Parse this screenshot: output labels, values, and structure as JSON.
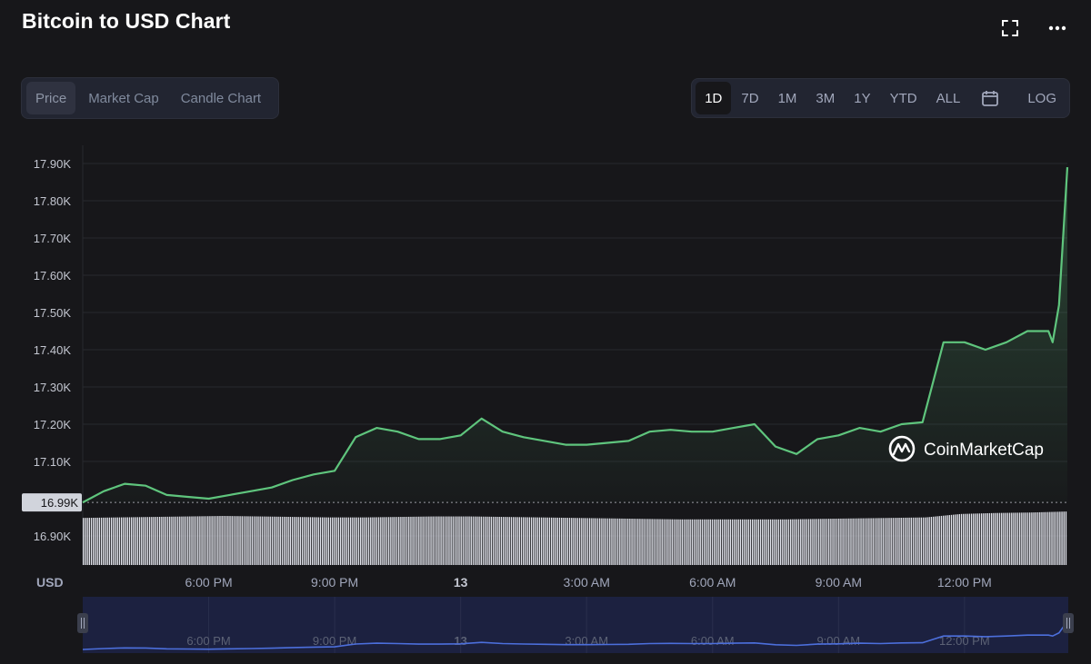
{
  "header": {
    "title": "Bitcoin to USD Chart",
    "fullscreen_icon": "fullscreen-icon",
    "more_icon": "more-dots-icon"
  },
  "chart_tabs": [
    {
      "label": "Price",
      "active": true
    },
    {
      "label": "Market Cap",
      "active": false
    },
    {
      "label": "Candle Chart",
      "active": false
    }
  ],
  "range_buttons": [
    "1D",
    "7D",
    "1M",
    "3M",
    "1Y",
    "YTD",
    "ALL"
  ],
  "active_range": "1D",
  "calendar_icon": "calendar-icon",
  "log_label": "LOG",
  "currency_label": "USD",
  "watermark": {
    "text": "CoinMarketCap",
    "icon": "coinmarketcap-logo-icon"
  },
  "colors": {
    "background": "#17171a",
    "line": "#5fc57d",
    "volume": "#e4e6ee",
    "navigator_line": "#4c6fdc",
    "navigator_bg": "#1c2140",
    "grid": "#27282e",
    "axis_text": "#a1a7bb"
  },
  "chart_data": {
    "type": "area",
    "series": [
      {
        "name": "Price",
        "color": "#5fc57d"
      }
    ],
    "ylim": [
      16860,
      17930
    ],
    "yticks": [
      16900,
      17100,
      17200,
      17300,
      17400,
      17500,
      17600,
      17700,
      17800,
      17900
    ],
    "ytick_labels": [
      "16.90K",
      "17.10K",
      "17.20K",
      "17.30K",
      "17.40K",
      "17.50K",
      "17.60K",
      "17.70K",
      "17.80K",
      "17.90K"
    ],
    "current_price_label": "16.99K",
    "current_price_value": 16990,
    "x_hours": [
      0.0,
      0.5,
      1.0,
      1.5,
      2.0,
      2.5,
      3.0,
      3.5,
      4.0,
      4.5,
      5.0,
      5.5,
      6.0,
      6.5,
      7.0,
      7.5,
      8.0,
      8.5,
      9.0,
      9.5,
      10.0,
      10.5,
      11.0,
      11.5,
      12.0,
      12.5,
      13.0,
      13.5,
      14.0,
      14.5,
      15.0,
      15.5,
      16.0,
      16.5,
      17.0,
      17.5,
      18.0,
      18.5,
      19.0,
      19.5,
      20.0,
      20.5,
      21.0,
      21.5,
      22.0,
      22.5,
      23.0,
      23.1,
      23.25,
      23.45
    ],
    "y_price": [
      16990,
      17020,
      17040,
      17035,
      17010,
      17005,
      17000,
      17010,
      17020,
      17030,
      17050,
      17065,
      17075,
      17165,
      17190,
      17180,
      17160,
      17160,
      17170,
      17215,
      17180,
      17165,
      17155,
      17145,
      17145,
      17150,
      17155,
      17180,
      17185,
      17180,
      17180,
      17190,
      17200,
      17140,
      17120,
      17160,
      17170,
      17190,
      17180,
      17200,
      17205,
      17420,
      17420,
      17400,
      17420,
      17450,
      17450,
      17420,
      17520,
      17890
    ],
    "xtick_labels": [
      "6:00 PM",
      "9:00 PM",
      "13",
      "3:00 AM",
      "6:00 AM",
      "9:00 AM",
      "12:00 PM"
    ],
    "xtick_hours": [
      3,
      6,
      9,
      12,
      15,
      18,
      21
    ],
    "volume_relative": [
      0.96,
      0.97,
      0.98,
      0.99,
      1.0,
      0.99,
      0.98,
      0.97,
      0.97,
      0.98,
      0.99,
      0.99,
      0.98,
      0.97,
      0.96,
      0.95,
      0.94,
      0.93,
      0.93,
      0.93,
      0.93,
      0.94,
      0.95,
      0.96,
      0.97,
      1.04,
      1.06,
      1.07,
      1.09
    ]
  }
}
